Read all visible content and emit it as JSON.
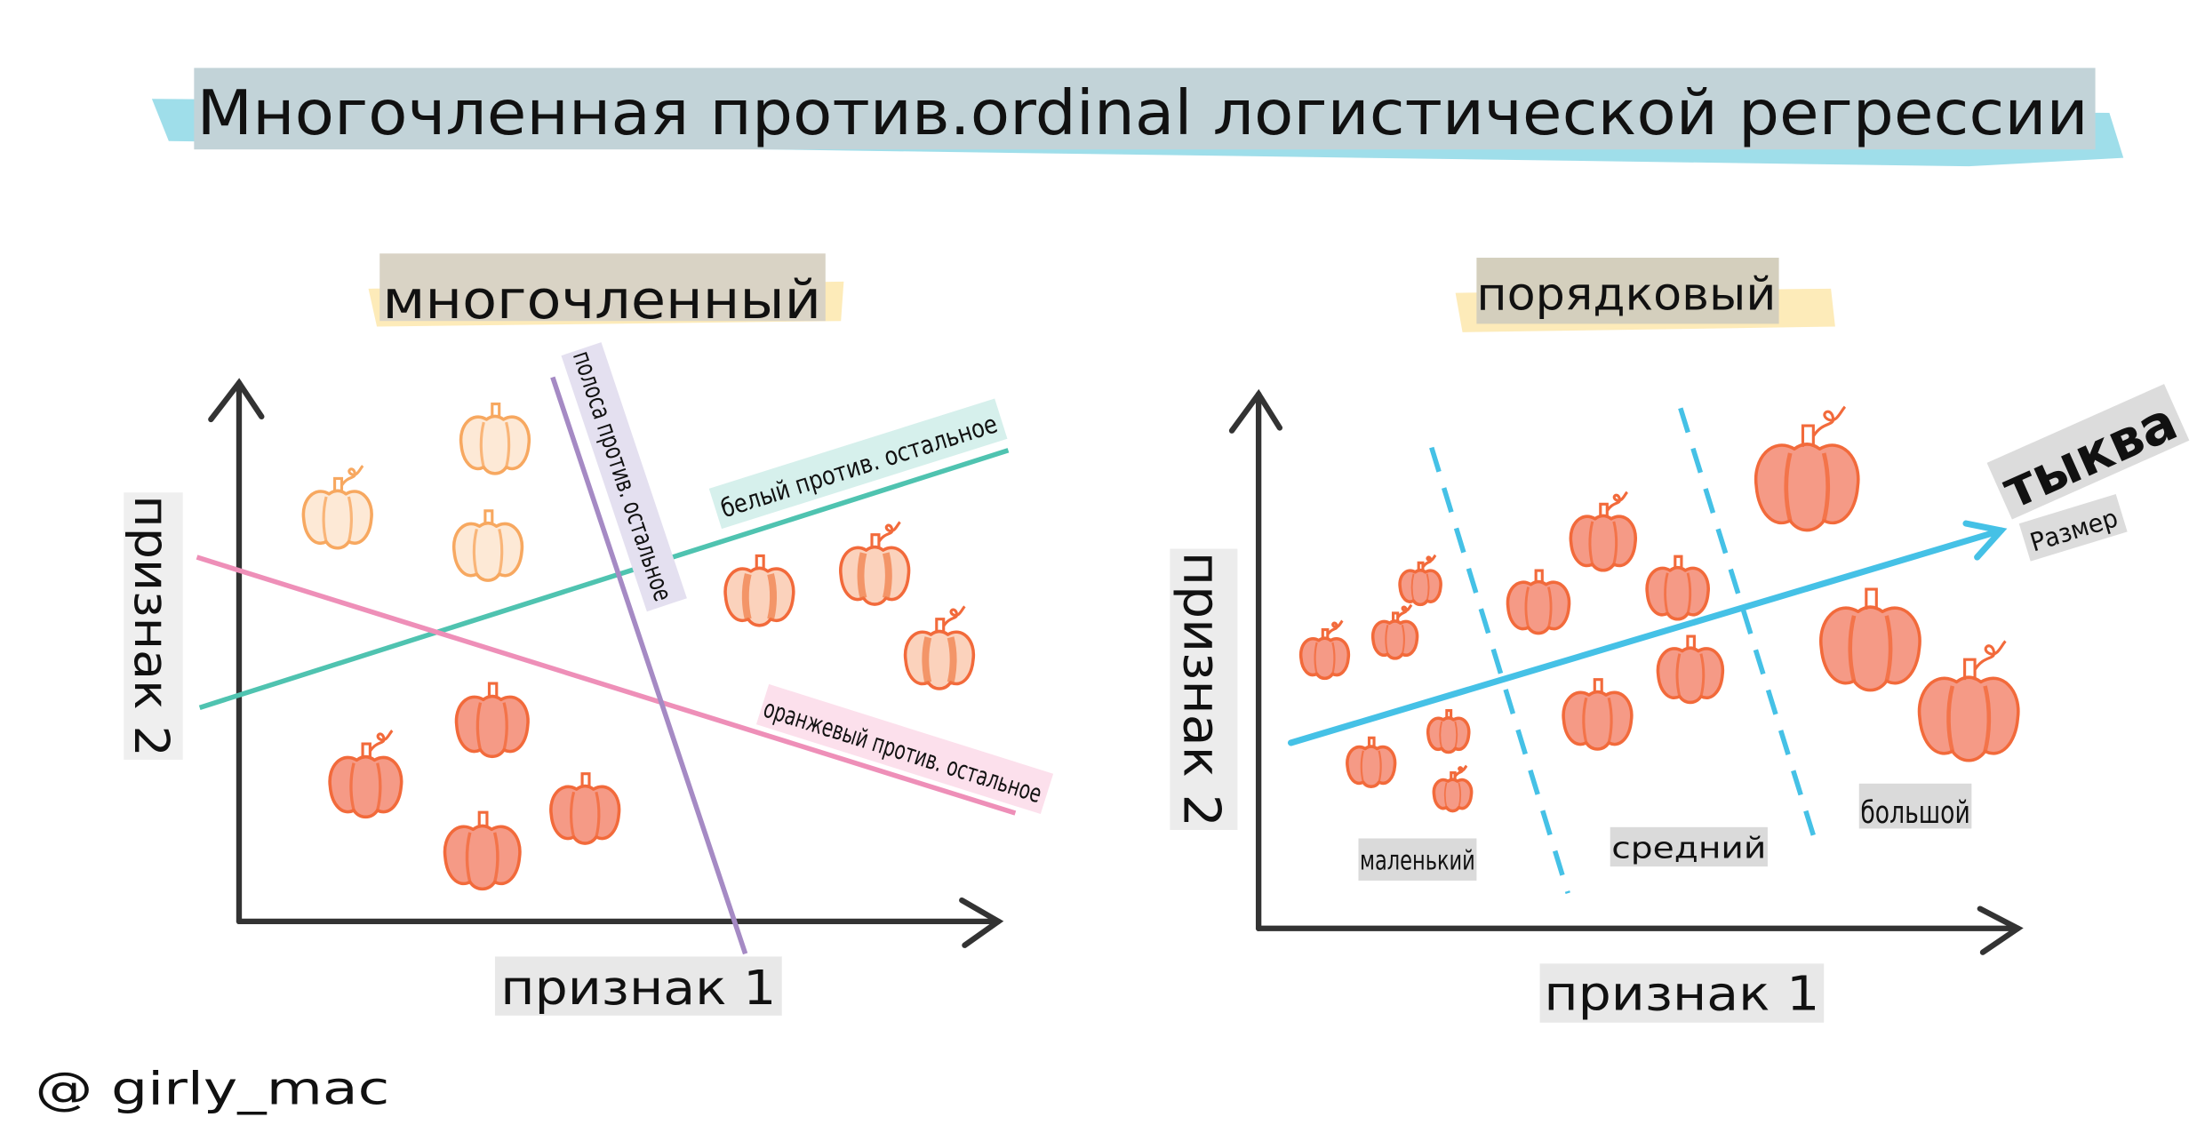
{
  "title": "Многочленная против.ordinal логистической регрессии",
  "credit": "@ girly_mac",
  "left_panel": {
    "heading": "многочленный",
    "x_axis_label": "признак 1",
    "y_axis_label": "признак 2",
    "boundaries": [
      {
        "label": "белый против. остальное",
        "color": "#4fc3b0",
        "label_bg": "#d6f0ec"
      },
      {
        "label": "оранжевый против. остальное",
        "color": "#ee8fb8",
        "label_bg": "#fce0ec"
      },
      {
        "label": "полоса против. остальное",
        "color": "#a58ac4",
        "label_bg": "#e4e0f0"
      }
    ]
  },
  "right_panel": {
    "heading": "порядковый",
    "x_axis_label": "признак 1",
    "y_axis_label": "признак 2",
    "arrow_label_main": "тыква",
    "arrow_label_sub": "Размер",
    "arrow_color": "#45c1e6",
    "categories": [
      "маленький",
      "средний",
      "большой"
    ]
  },
  "colors": {
    "title_bg": "#c2d3d8",
    "title_wash": "#7fd3e3",
    "heading_bg": "#d9d3c5",
    "heading_wash": "#fde6a8",
    "label_bg": "#e6e6e6",
    "pumpkin_orange": "#f26a3b",
    "pumpkin_white_outline": "#f7a860"
  }
}
